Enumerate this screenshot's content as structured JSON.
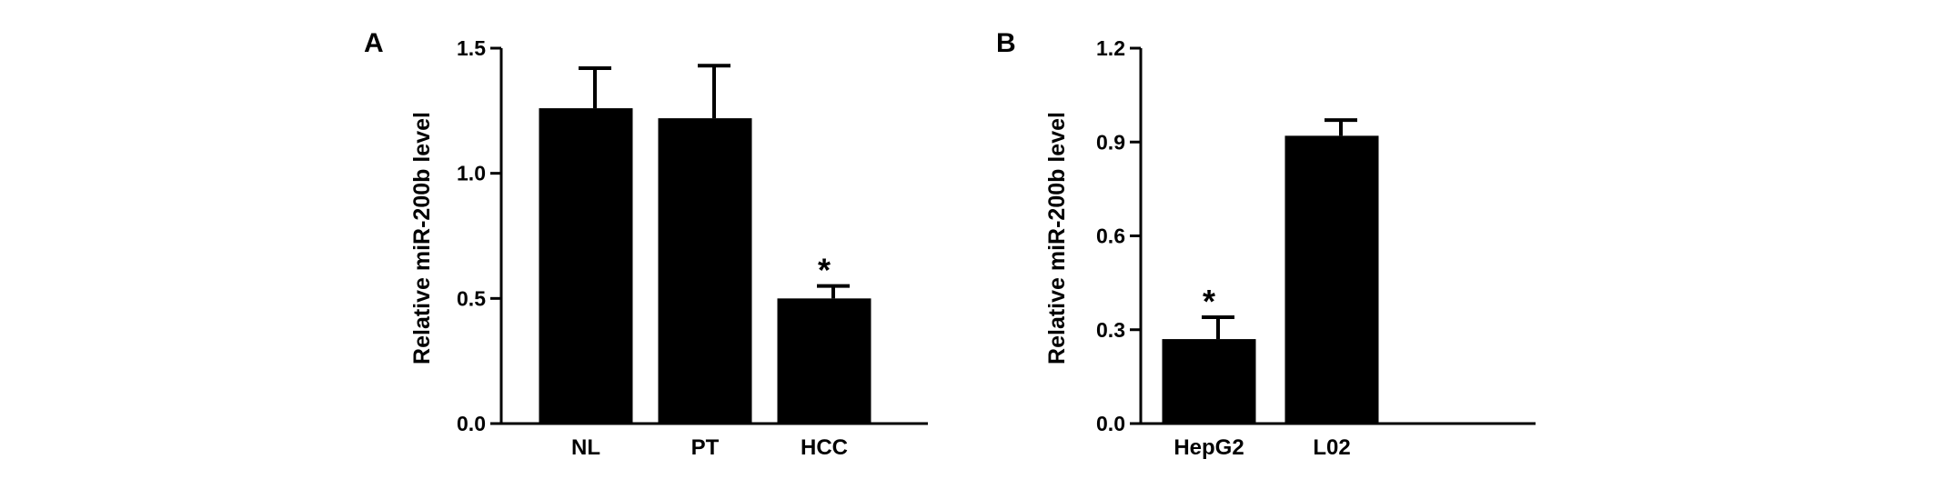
{
  "chart_data": [
    {
      "type": "bar",
      "panel_label": "A",
      "title": "",
      "xlabel": "",
      "ylabel": "Relative miR-200b level",
      "categories": [
        "NL",
        "PT",
        "HCC"
      ],
      "values": [
        1.26,
        1.22,
        0.5
      ],
      "errors": [
        0.16,
        0.21,
        0.05
      ],
      "annotations": [
        "",
        "",
        "*"
      ],
      "ylim": [
        0,
        1.5
      ],
      "yticks": [
        0.0,
        0.5,
        1.0,
        1.5
      ],
      "ytick_labels": [
        "0.0",
        "0.5",
        "1.0",
        "1.5"
      ],
      "grid": false,
      "bar_color": "#000000"
    },
    {
      "type": "bar",
      "panel_label": "B",
      "title": "",
      "xlabel": "",
      "ylabel": "Relative miR-200b level",
      "categories": [
        "HepG2",
        "L02"
      ],
      "values": [
        0.27,
        0.92
      ],
      "errors": [
        0.07,
        0.05
      ],
      "annotations": [
        "*",
        ""
      ],
      "ylim": [
        0,
        1.2
      ],
      "yticks": [
        0.0,
        0.3,
        0.6,
        0.9,
        1.2
      ],
      "ytick_labels": [
        "0.0",
        "0.3",
        "0.6",
        "0.9",
        "1.2"
      ],
      "grid": false,
      "bar_color": "#000000"
    }
  ]
}
